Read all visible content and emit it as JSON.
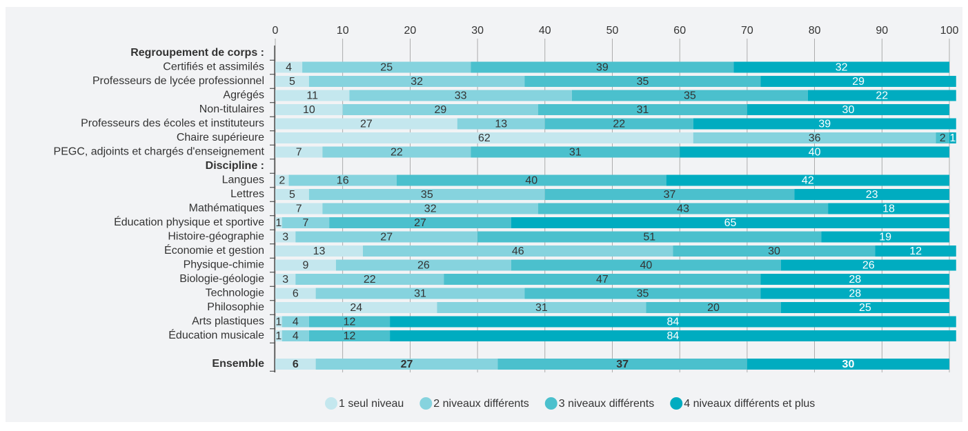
{
  "chart_data": {
    "type": "stacked_bar",
    "xlim": [
      0,
      100
    ],
    "xticks": [
      0,
      10,
      20,
      30,
      40,
      50,
      60,
      70,
      80,
      90,
      100
    ],
    "grid": true,
    "groups": [
      {
        "label": "Regroupement de corps :",
        "categories": [
          "Certifiés et assimilés",
          "Professeurs de lycée professionnel",
          "Agrégés",
          "Non-titulaires",
          "Professeurs des écoles et instituteurs",
          "Chaire supérieure",
          "PEGC, adjoints et chargés d'enseignement"
        ]
      },
      {
        "label": "Discipline :",
        "categories": [
          "Langues",
          "Lettres",
          "Mathématiques",
          "Éducation physique et sportive",
          "Histoire-géographie",
          "Économie et gestion",
          "Physique-chimie",
          "Biologie-géologie",
          "Technologie",
          "Philosophie",
          "Arts plastiques",
          "Éducation musicale"
        ]
      }
    ],
    "series": [
      {
        "name": "1 seul niveau",
        "color": "#c4e7ee",
        "label_color": "#333333",
        "values": [
          4,
          5,
          11,
          10,
          27,
          62,
          7,
          2,
          5,
          7,
          1,
          3,
          13,
          9,
          3,
          6,
          24,
          1,
          1
        ]
      },
      {
        "name": "2 niveaux différents",
        "color": "#86d3de",
        "label_color": "#333333",
        "values": [
          25,
          32,
          33,
          29,
          13,
          36,
          22,
          16,
          35,
          32,
          7,
          27,
          46,
          26,
          22,
          31,
          31,
          4,
          4
        ]
      },
      {
        "name": "3 niveaux différents",
        "color": "#4bc0cd",
        "label_color": "#333333",
        "values": [
          39,
          35,
          35,
          31,
          22,
          2,
          31,
          40,
          37,
          43,
          27,
          51,
          30,
          40,
          47,
          35,
          20,
          12,
          12
        ]
      },
      {
        "name": "4 niveaux différents et plus",
        "color": "#00acc0",
        "label_color": "#ffffff",
        "values": [
          32,
          29,
          22,
          30,
          39,
          1,
          40,
          42,
          23,
          18,
          65,
          19,
          12,
          26,
          28,
          28,
          25,
          84,
          84
        ]
      }
    ],
    "total": {
      "category": "Ensemble",
      "values": [
        6,
        27,
        37,
        30
      ]
    }
  }
}
